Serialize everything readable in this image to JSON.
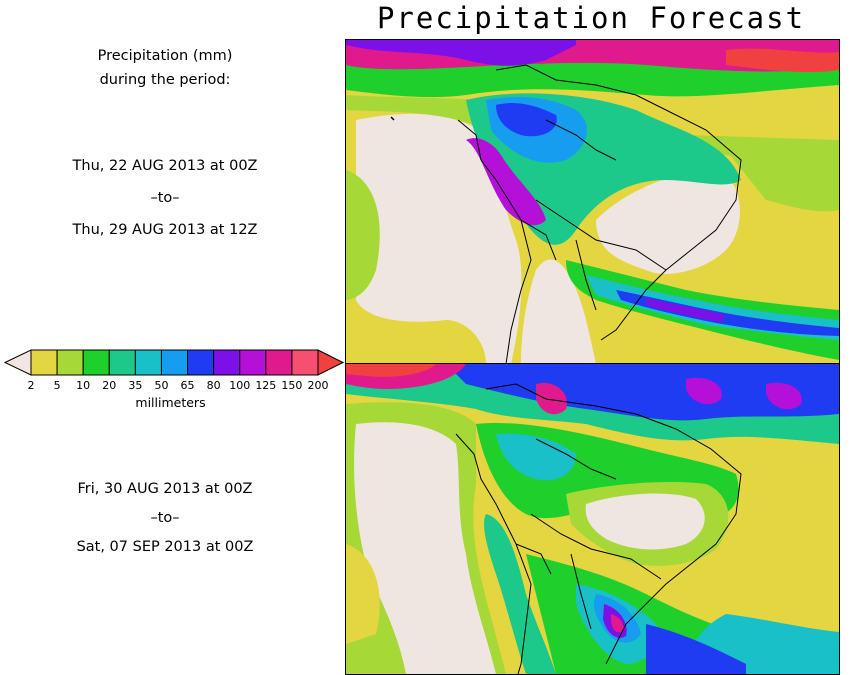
{
  "title": "Precipitation Forecast",
  "header_text": {
    "line1": "Precipitation (mm)",
    "line2": "during the period:"
  },
  "period1": {
    "start": "Thu, 22 AUG 2013 at 00Z",
    "separator": "–to–",
    "end": "Thu, 29 AUG 2013 at 12Z"
  },
  "period2": {
    "start": "Fri, 30 AUG 2013 at 00Z",
    "separator": "–to–",
    "end": "Sat, 07 SEP 2013 at 00Z"
  },
  "legend": {
    "unit_label": "millimeters",
    "thresholds": [
      "2",
      "5",
      "10",
      "20",
      "35",
      "50",
      "65",
      "80",
      "100",
      "125",
      "150",
      "200"
    ],
    "colors": [
      "#e3d640",
      "#a6d937",
      "#1fd02c",
      "#1cc88a",
      "#1ac0c8",
      "#179df0",
      "#1f3cf2",
      "#7d10e6",
      "#b410d8",
      "#e01a8c",
      "#f55070"
    ],
    "below_color": "#f2e6e2",
    "above_color": "#f04040"
  },
  "palette": {
    "dry": "#efe6e2",
    "land_lines": "#000000"
  }
}
